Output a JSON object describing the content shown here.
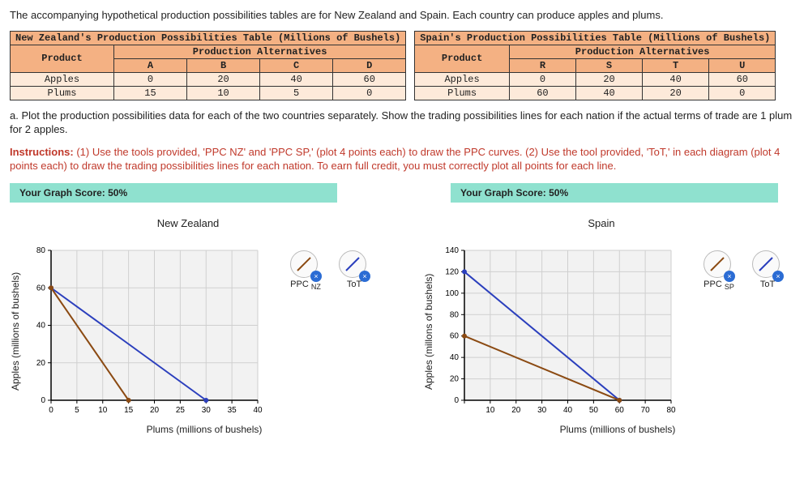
{
  "intro": "The accompanying hypothetical production possibilities tables are for New Zealand and Spain. Each country can produce apples and plums.",
  "tables": {
    "nz": {
      "title": "New Zealand's Production Possibilities Table (Millions of Bushels)",
      "sub": "Production Alternatives",
      "col0": "Product",
      "cols": [
        "A",
        "B",
        "C",
        "D"
      ],
      "rows": [
        {
          "label": "Apples",
          "vals": [
            "0",
            "20",
            "40",
            "60"
          ]
        },
        {
          "label": "Plums",
          "vals": [
            "15",
            "10",
            "5",
            "0"
          ]
        }
      ]
    },
    "sp": {
      "title": "Spain's Production Possibilities Table (Millions of Bushels)",
      "sub": "Production Alternatives",
      "col0": "Product",
      "cols": [
        "R",
        "S",
        "T",
        "U"
      ],
      "rows": [
        {
          "label": "Apples",
          "vals": [
            "0",
            "20",
            "40",
            "60"
          ]
        },
        {
          "label": "Plums",
          "vals": [
            "60",
            "40",
            "20",
            "0"
          ]
        }
      ]
    }
  },
  "partA": "a. Plot the production possibilities data for each of the two countries separately. Show the trading possibilities lines for each nation if the actual terms of trade are 1 plum for 2 apples.",
  "instrLabel": "Instructions:",
  "instrBody": " (1) Use the tools provided, 'PPC NZ' and 'PPC SP,' (plot 4 points each) to draw the PPC curves. (2) Use the tool provided, 'ToT,' in each diagram (plot 4 points each) to draw the trading possibilities lines for each nation. To earn full credit, you must correctly plot all points for each line.",
  "scoreLabel": "Your Graph Score: 50%",
  "charts": {
    "nz": {
      "title": "New Zealand",
      "ylabel": "Apples (millions of bushels)",
      "xlabel": "Plums (millions of bushels)",
      "xlim": [
        0,
        40
      ],
      "ylim": [
        0,
        80
      ],
      "xtick_step": 5,
      "ytick_step": 20,
      "bg": "#f2f2f2",
      "grid": "#cfcfcf",
      "ppc_color": "#8b4a12",
      "tot_color": "#2b3fbd",
      "ppc_points": [
        [
          0,
          60
        ],
        [
          15,
          0
        ]
      ],
      "tot_points": [
        [
          0,
          60
        ],
        [
          30,
          0
        ]
      ],
      "tools": {
        "ppc": "PPC",
        "ppc_sub": "NZ",
        "tot": "ToT"
      }
    },
    "sp": {
      "title": "Spain",
      "ylabel": "Apples (millons of bushels)",
      "xlabel": "Plums (millions of bushels)",
      "xlim": [
        0,
        80
      ],
      "ylim": [
        0,
        140
      ],
      "xtick_step": 10,
      "ytick_step": 20,
      "bg": "#f2f2f2",
      "grid": "#cfcfcf",
      "ppc_color": "#8b4a12",
      "tot_color": "#2b3fbd",
      "ppc_points": [
        [
          0,
          60
        ],
        [
          60,
          0
        ]
      ],
      "tot_points": [
        [
          0,
          120
        ],
        [
          60,
          0
        ]
      ],
      "tools": {
        "ppc": "PPC",
        "ppc_sub": "SP",
        "tot": "ToT"
      }
    }
  }
}
